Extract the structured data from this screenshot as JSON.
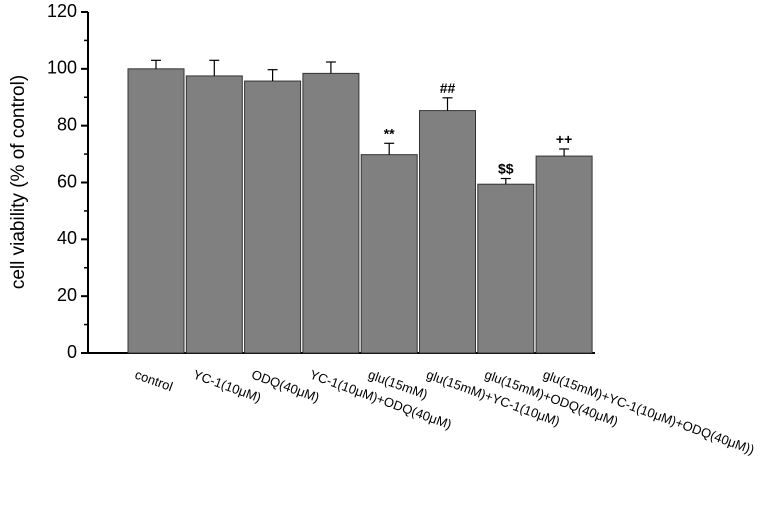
{
  "chart_data": {
    "type": "bar",
    "y_label": "cell viability (% of control)",
    "categories": [
      "control",
      "YC-1(10μM)",
      "ODQ(40μM)",
      "YC-1(10μM)+ODQ(40μM)",
      "glu(15mM)",
      "glu(15mM)+YC-1(10μM)",
      "glu(15mM)+ODQ(40μM)",
      "glu(15mM)+YC-1(10μM)+ODQ(40μM))"
    ],
    "values": [
      100,
      97.5,
      95.7,
      98.4,
      69.8,
      85.3,
      59.4,
      69.3
    ],
    "errors": [
      3,
      5.5,
      4,
      4,
      4,
      4.5,
      2,
      2.5
    ],
    "annotations": [
      null,
      null,
      null,
      null,
      "**",
      "##",
      "$$",
      "++"
    ],
    "color": "#808080",
    "ylim": [
      0,
      120
    ],
    "yticks": [
      0,
      20,
      40,
      60,
      80,
      100,
      120
    ]
  }
}
